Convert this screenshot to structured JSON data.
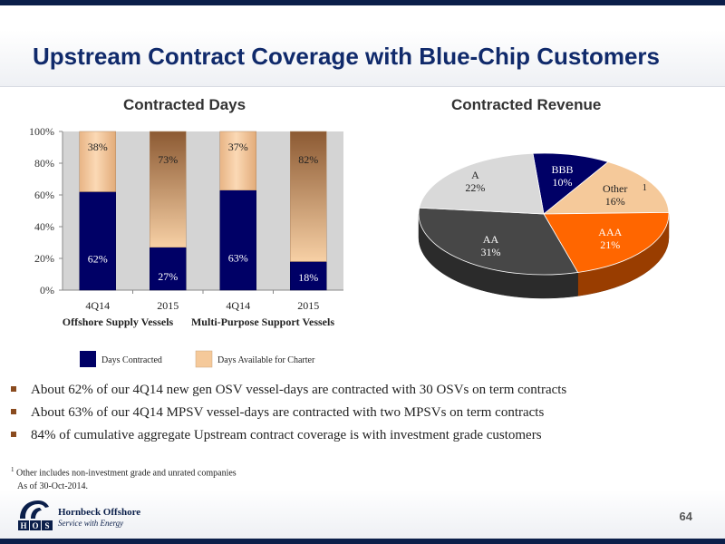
{
  "slide": {
    "title": "Upstream Contract Coverage with Blue-Chip Customers",
    "page_number": "64"
  },
  "colors": {
    "navy": "#000066",
    "tan": "#f5c99a",
    "dark_gray": "#474747",
    "orange": "#ff6600",
    "light_gray": "#d9d9d9",
    "title_blue": "#102a6b"
  },
  "chart_data": [
    {
      "type": "bar",
      "stacked": true,
      "title": "Contracted Days",
      "categories": [
        "4Q14",
        "2015",
        "4Q14",
        "2015"
      ],
      "group_labels": [
        "Offshore Supply Vessels",
        "Multi-Purpose Support Vessels"
      ],
      "series": [
        {
          "name": "Days Contracted",
          "values": [
            62,
            27,
            63,
            18
          ],
          "labels": [
            "62%",
            "27%",
            "63%",
            "18%"
          ],
          "color": "#000066"
        },
        {
          "name": "Days Available for Charter",
          "values": [
            38,
            73,
            37,
            82
          ],
          "labels": [
            "38%",
            "73%",
            "37%",
            "82%"
          ],
          "color": "#f5c99a"
        }
      ],
      "ylim": [
        0,
        100
      ],
      "yticks": [
        "0%",
        "20%",
        "40%",
        "60%",
        "80%",
        "100%"
      ],
      "grid": false,
      "legend_position": "bottom"
    },
    {
      "type": "pie",
      "title": "Contracted Revenue",
      "slices": [
        {
          "label": "BBB",
          "value": 10,
          "display": "10%",
          "color": "#000066",
          "text_color": "#ffffff"
        },
        {
          "label": "Other",
          "value": 16,
          "display": "16%",
          "color": "#f5c99a",
          "text_color": "#222222",
          "footnote_marker": "1"
        },
        {
          "label": "AAA",
          "value": 21,
          "display": "21%",
          "color": "#ff6600",
          "text_color": "#ffffff"
        },
        {
          "label": "AA",
          "value": 31,
          "display": "31%",
          "color": "#474747",
          "text_color": "#ffffff"
        },
        {
          "label": "A",
          "value": 22,
          "display": "22%",
          "color": "#d9d9d9",
          "text_color": "#222222"
        }
      ]
    }
  ],
  "bullets": [
    "About 62% of our 4Q14 new gen OSV vessel-days are contracted with 30 OSVs on term contracts",
    "About 63% of our 4Q14 MPSV vessel-days are contracted with two MPSVs on term contracts",
    "84% of cumulative aggregate Upstream contract coverage is with investment grade customers"
  ],
  "footnote": {
    "marker": "1",
    "text": "Other includes non-investment grade and unrated companies",
    "as_of": "As of 30-Oct-2014."
  },
  "logo": {
    "company": "Hornbeck Offshore",
    "tagline": "Service with Energy",
    "letters": [
      "H",
      "O",
      "S"
    ]
  }
}
